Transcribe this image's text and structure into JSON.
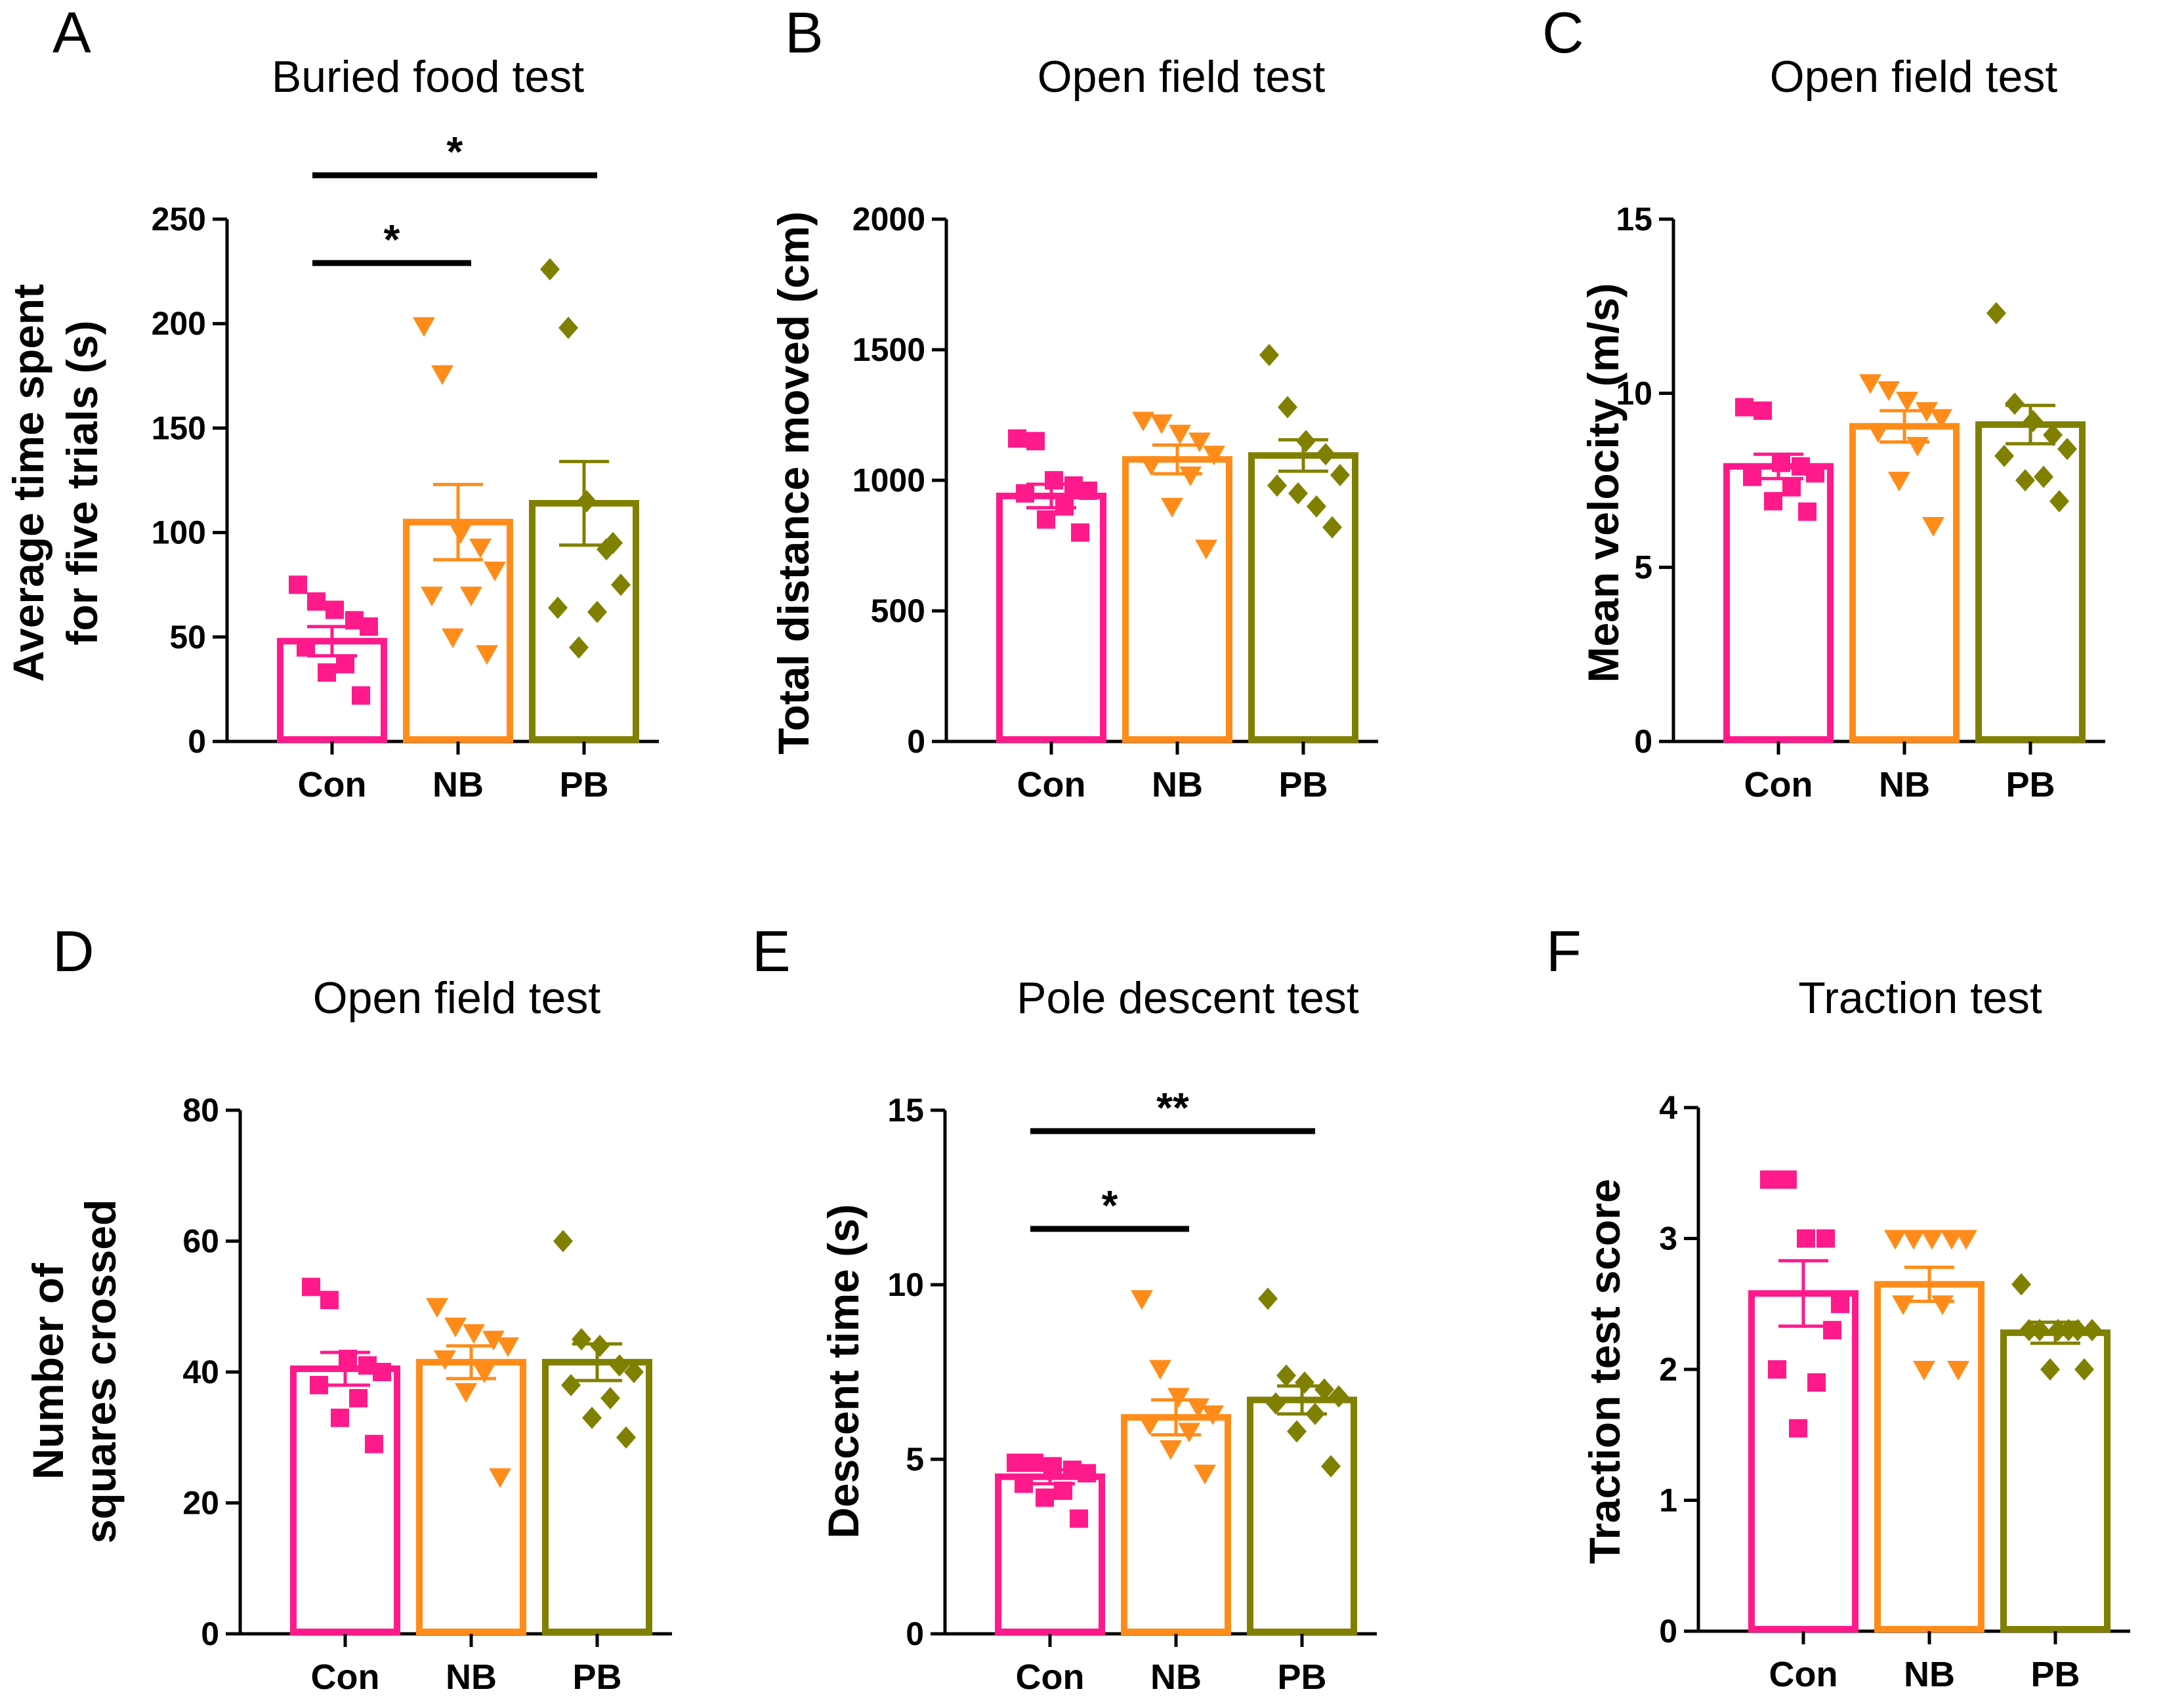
{
  "colors": {
    "Con": "#ff1a8c",
    "NB": "#ff8c1a",
    "PB": "#808000",
    "axis": "#000000",
    "star_alt": "#1a1a4d"
  },
  "chart_data": [
    {
      "panel": "A",
      "type": "bar",
      "title": "Buried food test",
      "ylabel": [
        "Average time spent",
        "for five trials (s)"
      ],
      "categories": [
        "Con",
        "NB",
        "PB"
      ],
      "ylim": [
        0,
        250
      ],
      "yticks": [
        0,
        50,
        100,
        150,
        200,
        250
      ],
      "ytick_labels": [
        "0",
        "50",
        "100",
        "150",
        "200",
        "250"
      ],
      "means": [
        48,
        105,
        114
      ],
      "sem": [
        7,
        18,
        20
      ],
      "points": [
        [
          75,
          67,
          63,
          58,
          55,
          45,
          37,
          33,
          22
        ],
        [
          199,
          176,
          100,
          93,
          82,
          70,
          70,
          50,
          42
        ],
        [
          226,
          198,
          115,
          92,
          75,
          64,
          62,
          45,
          95
        ]
      ],
      "significance": [
        {
          "from": 0,
          "to": 1,
          "label": "*",
          "y": 229
        },
        {
          "from": 0,
          "to": 2,
          "label": "*",
          "y": 271,
          "alt_color": true
        }
      ]
    },
    {
      "panel": "B",
      "type": "bar",
      "title": "Open field test",
      "ylabel": [
        "Total distance moved (cm)"
      ],
      "categories": [
        "Con",
        "NB",
        "PB"
      ],
      "ylim": [
        0,
        2000
      ],
      "yticks": [
        0,
        500,
        1000,
        1500,
        2000
      ],
      "ytick_labels": [
        "0",
        "500",
        "1000",
        "1500",
        "2000"
      ],
      "means": [
        940,
        1080,
        1095
      ],
      "sem": [
        45,
        55,
        60
      ],
      "points": [
        [
          1160,
          1150,
          1000,
          980,
          960,
          950,
          900,
          850,
          800
        ],
        [
          1230,
          1220,
          1180,
          1150,
          1100,
          1060,
          1020,
          900,
          740
        ],
        [
          1480,
          1280,
          1150,
          1100,
          1020,
          980,
          900,
          950,
          820
        ]
      ],
      "significance": []
    },
    {
      "panel": "C",
      "type": "bar",
      "title": "Open field test",
      "ylabel": [
        "Mean velocity (m/s)"
      ],
      "categories": [
        "Con",
        "NB",
        "PB"
      ],
      "ylim": [
        0,
        15
      ],
      "yticks": [
        0,
        5,
        10,
        15
      ],
      "ytick_labels": [
        "0",
        "5",
        "10",
        "15"
      ],
      "means": [
        7.9,
        9.05,
        9.1
      ],
      "sem": [
        0.35,
        0.45,
        0.55
      ],
      "points": [
        [
          9.6,
          9.5,
          8.0,
          7.9,
          7.7,
          7.6,
          7.3,
          6.9,
          6.6
        ],
        [
          10.3,
          10.1,
          9.8,
          9.5,
          9.3,
          8.9,
          8.5,
          7.5,
          6.2
        ],
        [
          12.3,
          9.7,
          9.2,
          8.8,
          8.4,
          8.2,
          7.6,
          7.5,
          6.9
        ]
      ],
      "significance": []
    },
    {
      "panel": "D",
      "type": "bar",
      "title": "Open field test",
      "ylabel": [
        "Number of",
        "squares crossed"
      ],
      "categories": [
        "Con",
        "NB",
        "PB"
      ],
      "ylim": [
        0,
        80
      ],
      "yticks": [
        0,
        20,
        40,
        60,
        80
      ],
      "ytick_labels": [
        "0",
        "20",
        "40",
        "60",
        "80"
      ],
      "means": [
        40.5,
        41.5,
        41.5
      ],
      "sem": [
        2.5,
        2.5,
        2.8
      ],
      "points": [
        [
          53,
          51,
          42,
          41,
          40,
          38,
          36,
          33,
          29
        ],
        [
          50,
          47,
          46,
          45,
          44,
          42,
          40,
          37,
          24
        ],
        [
          60,
          45,
          44,
          41,
          40,
          38,
          36,
          33,
          30
        ]
      ],
      "significance": []
    },
    {
      "panel": "E",
      "type": "bar",
      "title": "Pole descent test",
      "ylabel": [
        "Descent time (s)"
      ],
      "categories": [
        "Con",
        "NB",
        "PB"
      ],
      "ylim": [
        0,
        15
      ],
      "yticks": [
        0,
        5,
        10,
        15
      ],
      "ytick_labels": [
        "0",
        "5",
        "10",
        "15"
      ],
      "means": [
        4.5,
        6.2,
        6.7
      ],
      "sem": [
        0.2,
        0.5,
        0.4
      ],
      "points": [
        [
          4.9,
          4.9,
          4.8,
          4.7,
          4.6,
          4.3,
          4.1,
          3.9,
          3.3
        ],
        [
          9.6,
          7.6,
          6.8,
          6.5,
          6.3,
          6.0,
          5.8,
          5.3,
          4.6
        ],
        [
          9.6,
          7.4,
          7.2,
          7.0,
          6.8,
          6.6,
          6.3,
          5.8,
          4.8
        ]
      ],
      "significance": [
        {
          "from": 0,
          "to": 1,
          "label": "*",
          "y": 11.6
        },
        {
          "from": 0,
          "to": 2,
          "label": "**",
          "y": 14.4
        }
      ]
    },
    {
      "panel": "F",
      "type": "bar",
      "title": "Traction test",
      "ylabel": [
        "Traction test score"
      ],
      "categories": [
        "Con",
        "NB",
        "PB"
      ],
      "ylim": [
        0,
        4
      ],
      "yticks": [
        0,
        1,
        2,
        3,
        4
      ],
      "ytick_labels": [
        "0",
        "1",
        "2",
        "3",
        "4"
      ],
      "means": [
        2.58,
        2.65,
        2.28
      ],
      "sem": [
        0.25,
        0.13,
        0.08
      ],
      "points": [
        [
          3.45,
          3.45,
          3.0,
          3.0,
          2.5,
          2.0,
          1.9,
          1.55,
          2.3
        ],
        [
          3.0,
          3.0,
          3.0,
          3.0,
          3.0,
          2.5,
          2.5,
          2.0,
          2.0
        ],
        [
          2.65,
          2.3,
          2.3,
          2.3,
          2.3,
          2.3,
          2.3,
          2.0,
          2.0
        ]
      ],
      "significance": []
    }
  ]
}
